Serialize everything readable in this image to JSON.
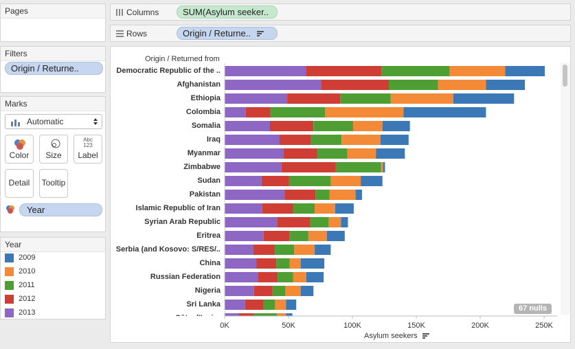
{
  "shelves": {
    "pages_title": "Pages",
    "columns_label": "Columns",
    "columns_pill": "SUM(Asylum seeker..",
    "rows_label": "Rows",
    "rows_pill": "Origin / Returne.."
  },
  "filters": {
    "title": "Filters",
    "pill": "Origin / Returne.."
  },
  "marks": {
    "title": "Marks",
    "mark_type": "Automatic",
    "buttons": {
      "color": "Color",
      "size": "Size",
      "label": "Label",
      "detail": "Detail",
      "tooltip": "Tooltip"
    },
    "label_icon_text": "Abc\n123",
    "year_pill": "Year"
  },
  "legend": {
    "title": "Year",
    "items": [
      {
        "label": "2009",
        "color": "#3c78b5"
      },
      {
        "label": "2010",
        "color": "#f28a37"
      },
      {
        "label": "2011",
        "color": "#4f9e33"
      },
      {
        "label": "2012",
        "color": "#cf3e35"
      },
      {
        "label": "2013",
        "color": "#8e67c4"
      }
    ]
  },
  "view": {
    "row_header": "Origin / Returned from",
    "nulls_badge": "67 nulls"
  },
  "chart_data": {
    "type": "bar",
    "orientation": "horizontal",
    "stacked": true,
    "xlabel": "Asylum seekers",
    "ylabel": "Origin / Returned from",
    "xlim": [
      0,
      260000
    ],
    "x_ticks": [
      {
        "value": 0,
        "label": "0K"
      },
      {
        "value": 50000,
        "label": "50K"
      },
      {
        "value": 100000,
        "label": "100K"
      },
      {
        "value": 150000,
        "label": "150K"
      },
      {
        "value": 200000,
        "label": "200K"
      },
      {
        "value": 250000,
        "label": "250K"
      }
    ],
    "categories": [
      "Democratic Republic of the ..",
      "Afghanistan",
      "Ethiopia",
      "Colombia",
      "Somalia",
      "Iraq",
      "Myanmar",
      "Zimbabwe",
      "Sudan",
      "Pakistan",
      "Islamic Republic of Iran",
      "Syrian Arab Republic",
      "Eritrea",
      "Serbia (and Kosovo: S/RES/..",
      "China",
      "Russian Federation",
      "Nigeria",
      "Sri Lanka",
      "Côte d'Ivoire"
    ],
    "series": [
      {
        "name": "2013",
        "color": "#8e67c4",
        "values": [
          64000,
          75500,
          49000,
          16500,
          35500,
          43000,
          46000,
          44500,
          29000,
          47000,
          29500,
          41000,
          30500,
          22500,
          25000,
          26000,
          23000,
          16000,
          11000
        ]
      },
      {
        "name": "2012",
        "color": "#cf3e35",
        "values": [
          59000,
          53000,
          41500,
          19000,
          34000,
          24500,
          26500,
          42500,
          21500,
          24000,
          24000,
          26000,
          20500,
          16500,
          15500,
          15500,
          14500,
          14500,
          12000
        ]
      },
      {
        "name": "2011",
        "color": "#4f9e33",
        "values": [
          53000,
          38500,
          39500,
          43000,
          31000,
          24000,
          23500,
          35500,
          32500,
          11000,
          17000,
          14500,
          14500,
          15500,
          10500,
          12000,
          10000,
          9000,
          18000
        ]
      },
      {
        "name": "2010",
        "color": "#f28a37",
        "values": [
          43500,
          37500,
          49000,
          61500,
          23000,
          30500,
          22500,
          1500,
          23500,
          20500,
          16000,
          9500,
          14500,
          16000,
          8500,
          10500,
          12000,
          8500,
          7000
        ]
      },
      {
        "name": "2009",
        "color": "#3c78b5",
        "values": [
          31000,
          30500,
          47500,
          64500,
          21500,
          22000,
          22500,
          1500,
          17000,
          5000,
          14500,
          5500,
          14000,
          12500,
          18500,
          13500,
          10000,
          8000,
          5000
        ]
      }
    ]
  }
}
